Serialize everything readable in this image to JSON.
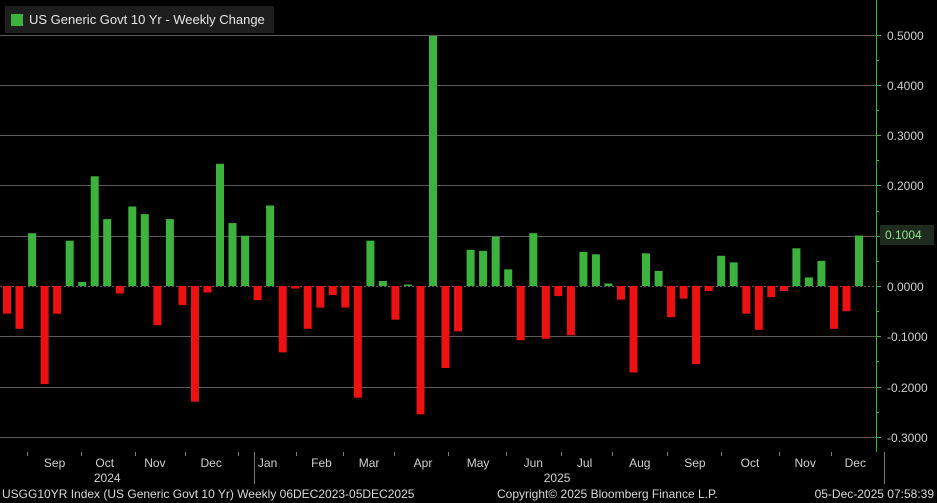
{
  "legend": {
    "label": "US Generic Govt 10 Yr - Weekly Change",
    "color": "#3cb33c"
  },
  "current_value_label": "0.1004",
  "footer": {
    "left": "USGG10YR Index (US Generic Govt 10 Yr) Weekly 06DEC2023-05DEC2025",
    "middle": "Copyright© 2025 Bloomberg Finance L.P.",
    "right": "05-Dec-2025 07:58:39"
  },
  "colors": {
    "positive": "#3cb33c",
    "negative": "#ee1111",
    "grid": "#5a5a5a",
    "axis": "#3cb33c",
    "background": "#000000"
  },
  "chart_data": {
    "type": "bar",
    "title": "US Generic Govt 10 Yr - Weekly Change",
    "ylim": [
      -0.31,
      0.52
    ],
    "yticks": [
      0.5,
      0.4,
      0.3,
      0.2,
      0.1,
      0.0,
      -0.1,
      -0.2,
      -0.3
    ],
    "ytick_labels": [
      "0.5000",
      "0.4000",
      "0.3000",
      "0.2000",
      "0.1000",
      "0.0000",
      "-0.1000",
      "-0.2000",
      "-0.3000"
    ],
    "month_labels": [
      "Sep",
      "Oct",
      "Nov",
      "Dec",
      "Jan",
      "Feb",
      "Mar",
      "Apr",
      "May",
      "Jun",
      "Jul",
      "Aug",
      "Sep",
      "Oct",
      "Nov",
      "Dec"
    ],
    "month_label_weeks": [
      3.8,
      7.8,
      11.8,
      16.3,
      20.8,
      25.1,
      28.9,
      33.2,
      37.6,
      42.0,
      46.1,
      50.5,
      54.9,
      59.3,
      63.7,
      67.7
    ],
    "month_separator_weeks": [
      1.6,
      5.9,
      10.2,
      14.2,
      18.4,
      23.1,
      26.8,
      30.9,
      35.2,
      39.8,
      44.2,
      48.3,
      52.7,
      57.0,
      61.6,
      65.8
    ],
    "year_labels": [
      "2024",
      "2025"
    ],
    "year_label_weeks": [
      8.0,
      43.9
    ],
    "year_separator_weeks": [
      19.7,
      70.0
    ],
    "values": [
      -0.055,
      -0.085,
      0.105,
      -0.195,
      -0.055,
      0.09,
      0.008,
      0.218,
      0.133,
      -0.015,
      0.158,
      0.143,
      -0.078,
      0.133,
      -0.038,
      -0.23,
      -0.013,
      0.243,
      0.125,
      0.1,
      -0.028,
      0.16,
      -0.132,
      -0.005,
      -0.085,
      -0.043,
      -0.018,
      -0.043,
      -0.222,
      0.09,
      0.01,
      -0.067,
      0.003,
      -0.255,
      0.497,
      -0.163,
      -0.09,
      0.072,
      0.07,
      0.098,
      0.033,
      -0.108,
      0.105,
      -0.105,
      -0.02,
      -0.098,
      0.068,
      0.063,
      0.005,
      -0.027,
      -0.172,
      0.065,
      0.03,
      -0.062,
      -0.025,
      -0.155,
      -0.01,
      0.06,
      0.047,
      -0.055,
      -0.087,
      -0.022,
      -0.01,
      0.075,
      0.017,
      0.05,
      -0.085,
      -0.05,
      0.1004
    ]
  }
}
